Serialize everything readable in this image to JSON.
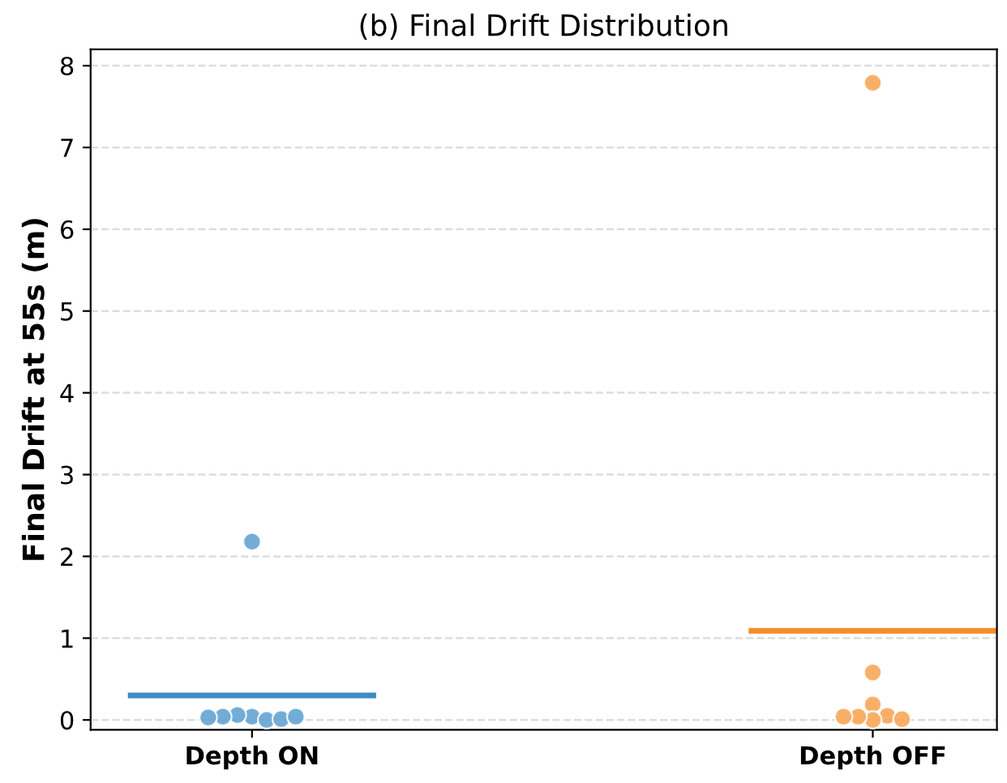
{
  "chart_data": {
    "type": "scatter",
    "title": "(b) Final Drift Distribution",
    "ylabel": "Final Drift at 55s (m)",
    "categories": [
      "Depth ON",
      "Depth OFF"
    ],
    "ylim": [
      -0.12,
      8.2
    ],
    "yticks": [
      0,
      1,
      2,
      3,
      4,
      5,
      6,
      7,
      8
    ],
    "grid": "y",
    "marker": "circle",
    "series": [
      {
        "color": "#5b9fd0",
        "x": [
          "Depth ON",
          "Depth ON",
          "Depth ON",
          "Depth ON",
          "Depth ON",
          "Depth ON",
          "Depth ON",
          "Depth ON"
        ],
        "values": [
          2.18,
          0.04,
          0.0,
          0.06,
          0.01,
          0.04,
          0.04,
          0.03
        ]
      },
      {
        "color": "#f7a24f",
        "x": [
          "Depth OFF",
          "Depth OFF",
          "Depth OFF",
          "Depth OFF",
          "Depth OFF",
          "Depth OFF",
          "Depth OFF",
          "Depth OFF"
        ],
        "values": [
          7.79,
          0.58,
          0.19,
          0.05,
          0.0,
          0.04,
          0.01,
          0.04
        ]
      },
      {
        "type": "bar",
        "colors": [
          "#3d8cc4",
          "#f28e2b"
        ],
        "base": [
          0.265,
          1.055
        ],
        "values": [
          0.07,
          0.07
        ]
      }
    ]
  }
}
